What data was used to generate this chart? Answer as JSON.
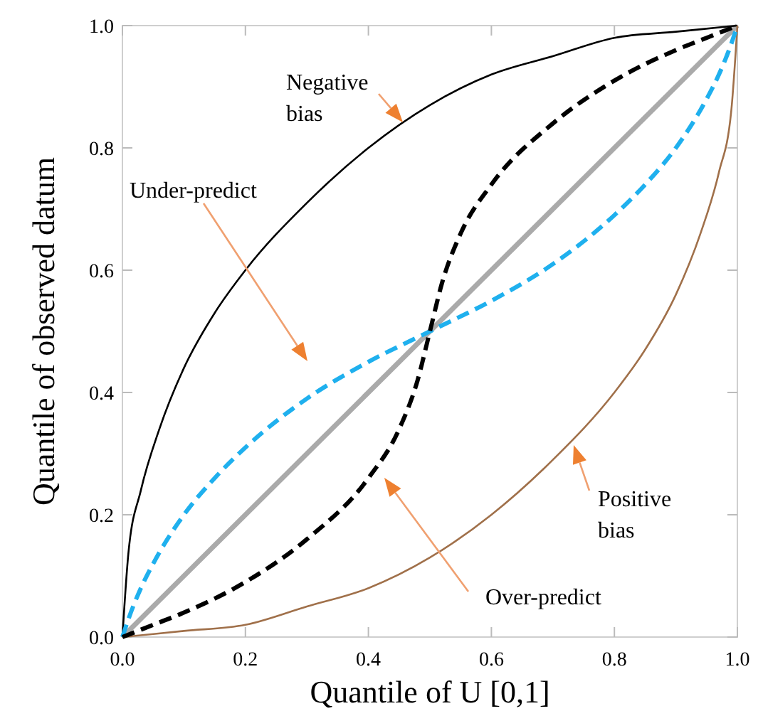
{
  "chart_data": {
    "type": "line",
    "xlabel": "Quantile of U [0,1]",
    "ylabel": "Quantile of observed datum",
    "xlim": [
      0,
      1
    ],
    "ylim": [
      0,
      1
    ],
    "xticks": [
      {
        "value": 0,
        "label": "0.0"
      },
      0.2,
      0.4,
      0.6,
      0.8,
      {
        "value": 1,
        "label": "1.0"
      }
    ],
    "yticks": [
      {
        "value": 0,
        "label": "0.0"
      },
      0.2,
      0.4,
      0.6,
      0.8,
      {
        "value": 1,
        "label": "1.0"
      }
    ],
    "grid": false,
    "series": [
      {
        "color": "#aaaaaa",
        "line_style": "solid",
        "x": [
          0,
          1
        ],
        "values": [
          0,
          1
        ]
      },
      {
        "color": "#000000",
        "line_style": "solid",
        "x": [
          0,
          0.01,
          0.03,
          0.06,
          0.1,
          0.15,
          0.2,
          0.3,
          0.4,
          0.5,
          0.6,
          0.7,
          0.8,
          0.9,
          1
        ],
        "values": [
          0,
          0.14,
          0.24,
          0.34,
          0.44,
          0.53,
          0.6,
          0.71,
          0.8,
          0.87,
          0.92,
          0.95,
          0.98,
          0.99,
          1
        ]
      },
      {
        "color": "#a0704a",
        "line_style": "solid",
        "x": [
          0,
          0.1,
          0.2,
          0.3,
          0.4,
          0.5,
          0.6,
          0.7,
          0.8,
          0.85,
          0.9,
          0.94,
          0.97,
          0.99,
          1
        ],
        "values": [
          0,
          0.01,
          0.02,
          0.05,
          0.08,
          0.13,
          0.2,
          0.29,
          0.4,
          0.47,
          0.56,
          0.66,
          0.76,
          0.86,
          1
        ]
      },
      {
        "color": "#1fb0ee",
        "line_style": "dashed",
        "x": [
          0,
          0.01,
          0.03,
          0.05,
          0.1,
          0.15,
          0.2,
          0.3,
          0.4,
          0.5,
          0.6,
          0.7,
          0.8,
          0.85,
          0.9,
          0.95,
          0.97,
          0.99,
          1
        ],
        "values": [
          0,
          0.03,
          0.08,
          0.12,
          0.2,
          0.26,
          0.31,
          0.39,
          0.45,
          0.5,
          0.55,
          0.61,
          0.69,
          0.74,
          0.8,
          0.88,
          0.92,
          0.97,
          1
        ]
      },
      {
        "color": "#000000",
        "line_style": "dashed",
        "x": [
          0,
          0.05,
          0.1,
          0.2,
          0.3,
          0.4,
          0.45,
          0.48,
          0.5,
          0.52,
          0.55,
          0.6,
          0.7,
          0.8,
          0.9,
          0.95,
          1
        ],
        "values": [
          0,
          0.02,
          0.04,
          0.09,
          0.16,
          0.26,
          0.34,
          0.42,
          0.5,
          0.58,
          0.66,
          0.74,
          0.84,
          0.91,
          0.96,
          0.98,
          1
        ]
      }
    ],
    "annotations": [
      "Negative bias",
      "Under-predict",
      "Over-predict",
      "Positive bias"
    ]
  }
}
